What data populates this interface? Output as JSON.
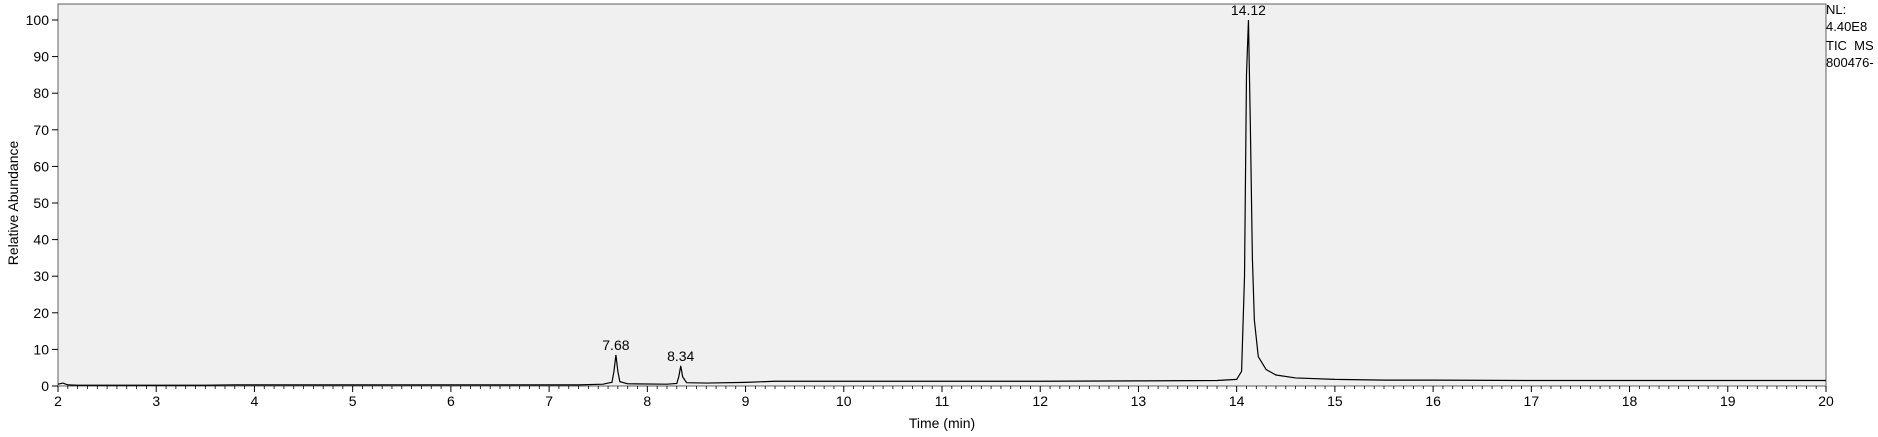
{
  "chart_data": {
    "type": "line",
    "xlabel": "Time (min)",
    "ylabel": "Relative Abundance",
    "xlim": [
      2,
      20
    ],
    "ylim": [
      0,
      100
    ],
    "x_ticks": [
      2,
      3,
      4,
      5,
      6,
      7,
      8,
      9,
      10,
      11,
      12,
      13,
      14,
      15,
      16,
      17,
      18,
      19,
      20
    ],
    "y_ticks": [
      0,
      10,
      20,
      30,
      40,
      50,
      60,
      70,
      80,
      90,
      100
    ],
    "grid": false,
    "info": {
      "nl_label": "NL:",
      "nl_value": "4.40E8",
      "scan_type": "TIC  MS",
      "file_id": "800476-"
    },
    "peaks": [
      {
        "label": "7.68",
        "x": 7.68,
        "y": 8.5
      },
      {
        "label": "8.34",
        "x": 8.34,
        "y": 5.5
      },
      {
        "label": "14.12",
        "x": 14.12,
        "y": 100
      }
    ],
    "series": [
      {
        "color": "#000000",
        "points": [
          [
            2.0,
            0.5
          ],
          [
            2.05,
            0.8
          ],
          [
            2.1,
            0.3
          ],
          [
            2.2,
            0.2
          ],
          [
            2.5,
            0.2
          ],
          [
            3.0,
            0.2
          ],
          [
            3.5,
            0.2
          ],
          [
            3.8,
            0.3
          ],
          [
            4.5,
            0.3
          ],
          [
            5.5,
            0.3
          ],
          [
            6.5,
            0.3
          ],
          [
            7.3,
            0.3
          ],
          [
            7.55,
            0.5
          ],
          [
            7.6,
            0.8
          ],
          [
            7.64,
            1.0
          ],
          [
            7.66,
            4.0
          ],
          [
            7.68,
            8.5
          ],
          [
            7.7,
            4.0
          ],
          [
            7.72,
            1.2
          ],
          [
            7.8,
            0.6
          ],
          [
            8.2,
            0.5
          ],
          [
            8.3,
            0.7
          ],
          [
            8.32,
            2.5
          ],
          [
            8.34,
            5.5
          ],
          [
            8.36,
            2.5
          ],
          [
            8.4,
            0.9
          ],
          [
            8.6,
            0.8
          ],
          [
            9.0,
            1.0
          ],
          [
            9.3,
            1.3
          ],
          [
            10.0,
            1.3
          ],
          [
            11.0,
            1.3
          ],
          [
            12.0,
            1.3
          ],
          [
            13.0,
            1.4
          ],
          [
            13.8,
            1.5
          ],
          [
            14.0,
            1.8
          ],
          [
            14.05,
            4.0
          ],
          [
            14.08,
            30.0
          ],
          [
            14.1,
            85.0
          ],
          [
            14.12,
            100.0
          ],
          [
            14.14,
            70.0
          ],
          [
            14.16,
            35.0
          ],
          [
            14.18,
            18.0
          ],
          [
            14.22,
            8.0
          ],
          [
            14.3,
            4.5
          ],
          [
            14.4,
            3.0
          ],
          [
            14.6,
            2.2
          ],
          [
            15.0,
            1.8
          ],
          [
            15.5,
            1.6
          ],
          [
            16.0,
            1.6
          ],
          [
            17.0,
            1.5
          ],
          [
            18.0,
            1.5
          ],
          [
            19.0,
            1.5
          ],
          [
            20.0,
            1.5
          ]
        ]
      }
    ]
  }
}
